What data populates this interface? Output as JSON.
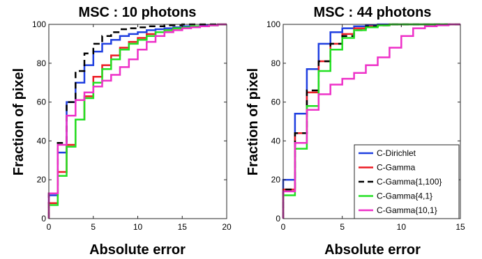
{
  "chart_data": [
    {
      "type": "line",
      "step": true,
      "title": "MSC : 10 photons",
      "xlabel": "Absolute error",
      "ylabel": "Fraction of pixel",
      "xlim": [
        0,
        20
      ],
      "ylim": [
        0,
        100
      ],
      "xticks": [
        "0",
        "5",
        "10",
        "15",
        "20"
      ],
      "yticks": [
        "0",
        "20",
        "40",
        "60",
        "80",
        "100"
      ],
      "grid": false,
      "legend": "none",
      "series": [
        {
          "key": "dirichlet",
          "x": [
            0,
            1,
            2,
            3,
            4,
            5,
            6,
            7,
            8,
            9,
            10,
            11,
            12,
            13,
            14,
            15,
            16,
            17,
            18,
            19,
            20
          ],
          "y": [
            12,
            34,
            60,
            70,
            79,
            86,
            90,
            92,
            94,
            95,
            96,
            97,
            97.5,
            98,
            98.5,
            99,
            99,
            99.5,
            99.5,
            100,
            100
          ]
        },
        {
          "key": "gamma",
          "x": [
            0,
            1,
            2,
            3,
            4,
            5,
            6,
            7,
            8,
            9,
            10,
            11,
            12,
            13,
            14,
            15,
            16,
            17,
            18,
            19,
            20
          ],
          "y": [
            8,
            24,
            38,
            51,
            63,
            73,
            79,
            84,
            88,
            91,
            93,
            95,
            96,
            97,
            98,
            98.5,
            99,
            99,
            99.5,
            100,
            100
          ]
        },
        {
          "key": "gamma_1_100",
          "x": [
            0,
            1,
            2,
            3,
            4,
            5,
            6,
            7,
            8,
            9,
            10,
            11,
            12,
            13,
            14,
            15,
            16,
            17,
            18,
            19,
            20
          ],
          "y": [
            13,
            39,
            60,
            76,
            85,
            90,
            94,
            96,
            97.5,
            98,
            98.5,
            99,
            99,
            99.5,
            99.5,
            100,
            100,
            100,
            100,
            100,
            100
          ]
        },
        {
          "key": "gamma_4_1",
          "x": [
            0,
            1,
            2,
            3,
            4,
            5,
            6,
            7,
            8,
            9,
            10,
            11,
            12,
            13,
            14,
            15,
            16,
            17,
            18,
            19,
            20
          ],
          "y": [
            7,
            22,
            37,
            51,
            62,
            70,
            77,
            82,
            87,
            90,
            92,
            94,
            96,
            97,
            98,
            98.5,
            99,
            99,
            99.5,
            100,
            100
          ]
        },
        {
          "key": "gamma_10_1",
          "x": [
            0,
            1,
            2,
            3,
            4,
            5,
            6,
            7,
            8,
            9,
            10,
            11,
            12,
            13,
            14,
            15,
            16,
            17,
            18,
            19,
            20
          ],
          "y": [
            13,
            38,
            53,
            61,
            65,
            68,
            71,
            74,
            78,
            82,
            87,
            91,
            94,
            96,
            97,
            98,
            98.5,
            99,
            99.5,
            100,
            100
          ]
        }
      ]
    },
    {
      "type": "line",
      "step": true,
      "title": "MSC : 44 photons",
      "xlabel": "Absolute error",
      "ylabel": "Fraction of pixel",
      "xlim": [
        0,
        15
      ],
      "ylim": [
        0,
        100
      ],
      "xticks": [
        "0",
        "5",
        "10",
        "15"
      ],
      "yticks": [
        "0",
        "20",
        "40",
        "60",
        "80",
        "100"
      ],
      "grid": false,
      "legend": "bottom-right",
      "series": [
        {
          "name": "C-Dirichlet",
          "key": "dirichlet",
          "x": [
            0,
            1,
            2,
            3,
            4,
            5,
            6,
            7,
            8,
            9,
            10,
            11,
            12,
            13,
            14,
            15
          ],
          "y": [
            20,
            54,
            77,
            90,
            96,
            98,
            99,
            99.5,
            100,
            100,
            100,
            100,
            100,
            100,
            100,
            100
          ]
        },
        {
          "name": "C-Gamma",
          "key": "gamma",
          "x": [
            0,
            1,
            2,
            3,
            4,
            5,
            6,
            7,
            8,
            9,
            10,
            11,
            12,
            13,
            14,
            15
          ],
          "y": [
            15,
            44,
            65,
            81,
            90,
            95,
            98,
            99,
            99.5,
            100,
            100,
            100,
            100,
            100,
            100,
            100
          ]
        },
        {
          "name": "C-Gamma{1,100}",
          "key": "gamma_1_100",
          "x": [
            0,
            1,
            2,
            3,
            4,
            5,
            6,
            7,
            8,
            9,
            10,
            11,
            12,
            13,
            14,
            15
          ],
          "y": [
            15,
            44,
            66,
            81,
            90,
            94,
            97,
            99,
            99.5,
            100,
            100,
            100,
            100,
            100,
            100,
            100
          ]
        },
        {
          "name": "C-Gamma{4,1}",
          "key": "gamma_4_1",
          "x": [
            0,
            1,
            2,
            3,
            4,
            5,
            6,
            7,
            8,
            9,
            10,
            11,
            12,
            13,
            14,
            15
          ],
          "y": [
            12,
            36,
            58,
            76,
            87,
            93,
            97,
            98.5,
            99.5,
            100,
            100,
            100,
            100,
            100,
            100,
            100
          ]
        },
        {
          "name": "C-Gamma{10,1}",
          "key": "gamma_10_1",
          "x": [
            0,
            1,
            2,
            3,
            4,
            5,
            6,
            7,
            8,
            9,
            10,
            11,
            12,
            13,
            14,
            15
          ],
          "y": [
            14,
            39,
            56,
            64,
            69,
            72,
            75,
            79,
            83,
            88,
            94,
            98,
            99,
            99.5,
            100,
            100
          ]
        }
      ]
    }
  ],
  "styles": {
    "dirichlet": {
      "color": "#1f3fe0",
      "dash": ""
    },
    "gamma": {
      "color": "#ec1c24",
      "dash": ""
    },
    "gamma_1_100": {
      "color": "#000000",
      "dash": "9,6"
    },
    "gamma_4_1": {
      "color": "#22e022",
      "dash": ""
    },
    "gamma_10_1": {
      "color": "#ee30c8",
      "dash": ""
    }
  }
}
